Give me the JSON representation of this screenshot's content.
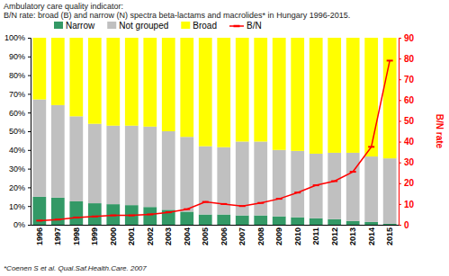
{
  "chart_data": {
    "type": "bar",
    "title": "Ambulatory care quality indicator:",
    "subtitle": "B/N rate: broad (B) and narrow (N) spectra beta-lactams and macrolides*  in Hungary 1996-2015.",
    "annotations": [
      "*Coenen S et al. Qual.Saf.Health.Care. 2007"
    ],
    "y2_label": "B/N rate",
    "categories": [
      "1996",
      "1997",
      "1998",
      "1999",
      "2000",
      "2001",
      "2002",
      "2003",
      "2004",
      "2005",
      "2006",
      "2007",
      "2008",
      "2009",
      "2010",
      "2011",
      "2012",
      "2013",
      "2014",
      "2015"
    ],
    "series": [
      {
        "name": "Narrow",
        "color": "#339966",
        "values": [
          15,
          14.5,
          12.5,
          11.5,
          11,
          10.5,
          9.5,
          8,
          7,
          5.5,
          5.5,
          5,
          5,
          4.5,
          4,
          3.5,
          3,
          2,
          1.5,
          0.5
        ]
      },
      {
        "name": "Not grouped",
        "color": "#c0c0c0",
        "values": [
          52,
          49.5,
          45.5,
          42.5,
          42,
          42.5,
          43,
          42,
          40,
          36.5,
          36,
          39.5,
          39.5,
          35.5,
          35.5,
          34.5,
          35.5,
          36.5,
          35,
          35
        ]
      },
      {
        "name": "Broad",
        "color": "#ffff00",
        "values": [
          33,
          36,
          42,
          46,
          47,
          47,
          47.5,
          50,
          53,
          58,
          58.5,
          55.5,
          55.5,
          60,
          60.5,
          62,
          61.5,
          61.5,
          63.5,
          64.5
        ]
      },
      {
        "name": "B/N",
        "color": "#ff0000",
        "type": "line",
        "axis": "y2",
        "marker": "dash",
        "values": [
          2,
          2.5,
          3.5,
          4,
          4.5,
          4.5,
          5,
          6,
          7.5,
          11,
          10,
          9,
          10.5,
          12.5,
          15.5,
          19,
          21,
          25.5,
          37.5,
          79
        ]
      }
    ],
    "stacked": true,
    "grid": false,
    "legend": "top",
    "ylim": [
      0,
      100
    ],
    "yticks": [
      {
        "value": 0,
        "label": "0%"
      },
      {
        "value": 10,
        "label": "10%"
      },
      {
        "value": 20,
        "label": "20%"
      },
      {
        "value": 30,
        "label": "30%"
      },
      {
        "value": 40,
        "label": "40%"
      },
      {
        "value": 50,
        "label": "50%"
      },
      {
        "value": 60,
        "label": "60%"
      },
      {
        "value": 70,
        "label": "70%"
      },
      {
        "value": 80,
        "label": "80%"
      },
      {
        "value": 90,
        "label": "90%"
      },
      {
        "value": 100,
        "label": "100%"
      }
    ],
    "y2lim": [
      0,
      90
    ],
    "y2ticks": [
      0,
      10,
      20,
      30,
      40,
      50,
      60,
      70,
      80,
      90
    ]
  }
}
